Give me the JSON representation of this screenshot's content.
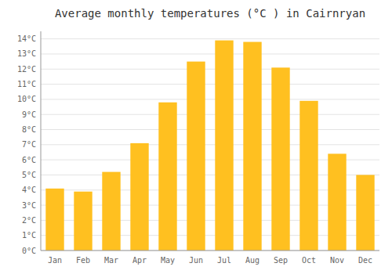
{
  "chart_data": {
    "type": "bar",
    "title": "Average monthly temperatures (°C ) in Cairnryan",
    "categories": [
      "Jan",
      "Feb",
      "Mar",
      "Apr",
      "May",
      "Jun",
      "Jul",
      "Aug",
      "Sep",
      "Oct",
      "Nov",
      "Dec"
    ],
    "values": [
      4.1,
      3.9,
      5.2,
      7.1,
      9.8,
      12.5,
      13.9,
      13.8,
      12.1,
      9.9,
      6.4,
      5.0
    ],
    "color": "#FFC020",
    "ylim": [
      0,
      14.5
    ],
    "yticks": [
      {
        "value": 0,
        "label": "0°C"
      },
      {
        "value": 1,
        "label": "1°C"
      },
      {
        "value": 2,
        "label": "2°C"
      },
      {
        "value": 3,
        "label": "3°C"
      },
      {
        "value": 4,
        "label": "4°C"
      },
      {
        "value": 5,
        "label": "5°C"
      },
      {
        "value": 6,
        "label": "6°C"
      },
      {
        "value": 7,
        "label": "7°C"
      },
      {
        "value": 8,
        "label": "8°C"
      },
      {
        "value": 9,
        "label": "9°C"
      },
      {
        "value": 10,
        "label": "10°C"
      },
      {
        "value": 11,
        "label": "11°C"
      },
      {
        "value": 12,
        "label": "12°C"
      },
      {
        "value": 13,
        "label": "13°C"
      },
      {
        "value": 14,
        "label": "14°C"
      }
    ],
    "grid": true
  }
}
